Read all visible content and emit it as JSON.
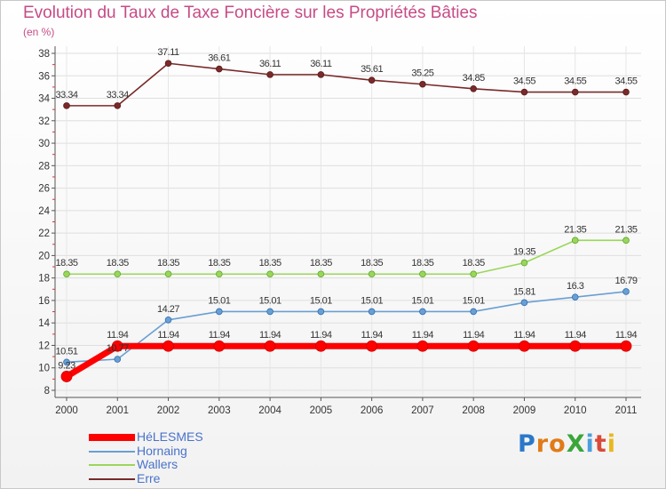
{
  "title": "Evolution du Taux de Taxe Foncière sur les Propriétés Bâties",
  "unit_label": "(en %)",
  "logo": {
    "text": "ProXiti",
    "colors": [
      "#2a78c8",
      "#e07b18",
      "#e07b18",
      "#3aa63a",
      "#4a9fdc",
      "#d94a3a",
      "#e8b820"
    ]
  },
  "chart_data": {
    "type": "line",
    "title": "Evolution du Taux de Taxe Foncière sur les Propriétés Bâties",
    "ylabel": "(en %)",
    "xlabel": "",
    "x": [
      "2000",
      "2001",
      "2002",
      "2003",
      "2004",
      "2005",
      "2006",
      "2007",
      "2008",
      "2009",
      "2010",
      "2011"
    ],
    "ylim": [
      8,
      38
    ],
    "yticks": [
      "8",
      "10",
      "12",
      "14",
      "16",
      "18",
      "20",
      "22",
      "24",
      "26",
      "28",
      "30",
      "32",
      "34",
      "36",
      "38"
    ],
    "legend_position": "bottom-left",
    "series": [
      {
        "name": "HéLESMES",
        "color": "#ff0000",
        "values": [
          9.23,
          11.94,
          11.94,
          11.94,
          11.94,
          11.94,
          11.94,
          11.94,
          11.94,
          11.94,
          11.94,
          11.94
        ],
        "labels": [
          "9.23",
          "11.94",
          "11.94",
          "11.94",
          "11.94",
          "11.94",
          "11.94",
          "11.94",
          "11.94",
          "11.94",
          "11.94",
          "11.94"
        ]
      },
      {
        "name": "Hornaing",
        "color": "#6a9fd2",
        "values": [
          10.51,
          10.77,
          14.27,
          15.01,
          15.01,
          15.01,
          15.01,
          15.01,
          15.01,
          15.81,
          16.3,
          16.79
        ],
        "labels": [
          "10.51",
          "10.77",
          "14.27",
          "15.01",
          "15.01",
          "15.01",
          "15.01",
          "15.01",
          "15.01",
          "15.81",
          "16.3",
          "16.79"
        ]
      },
      {
        "name": "Wallers",
        "color": "#9ad65a",
        "values": [
          18.35,
          18.35,
          18.35,
          18.35,
          18.35,
          18.35,
          18.35,
          18.35,
          18.35,
          19.35,
          21.35,
          21.35
        ],
        "labels": [
          "18.35",
          "18.35",
          "18.35",
          "18.35",
          "18.35",
          "18.35",
          "18.35",
          "18.35",
          "18.35",
          "19.35",
          "21.35",
          "21.35"
        ]
      },
      {
        "name": "Erre",
        "color": "#7a2a2a",
        "values": [
          33.34,
          33.34,
          37.11,
          36.61,
          36.11,
          36.11,
          35.61,
          35.25,
          34.85,
          34.55,
          34.55,
          34.55
        ],
        "labels": [
          "33.34",
          "33.34",
          "37.11",
          "36.61",
          "36.11",
          "36.11",
          "35.61",
          "35.25",
          "34.85",
          "34.55",
          "34.55",
          "34.55"
        ]
      }
    ]
  }
}
